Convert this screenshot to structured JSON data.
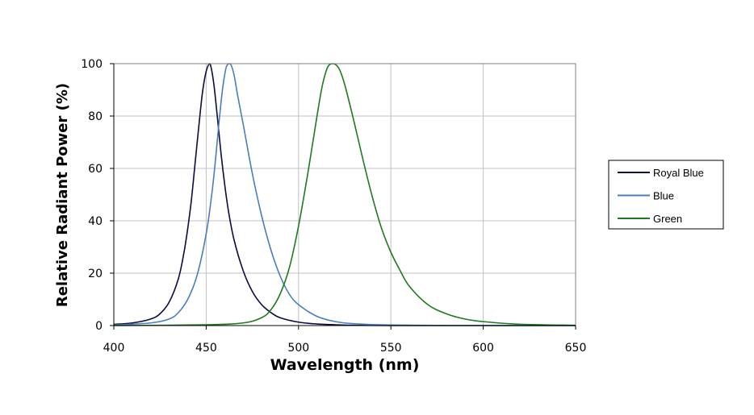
{
  "chart_data": {
    "type": "line",
    "title": "",
    "xlabel": "Wavelength (nm)",
    "ylabel": "Relative Radiant Power (%)",
    "xlim": [
      400,
      650
    ],
    "ylim": [
      0,
      100
    ],
    "xticks": [
      400,
      450,
      500,
      550,
      600,
      650
    ],
    "yticks": [
      0,
      20,
      40,
      60,
      80,
      100
    ],
    "grid": true,
    "legend_position": "right",
    "series": [
      {
        "name": "Royal Blue",
        "color": "#0b0b45",
        "x": [
          400,
          410,
          420,
          425,
          430,
          435,
          438,
          440,
          442,
          444,
          446,
          448,
          450,
          452,
          454,
          456,
          458,
          460,
          462,
          465,
          470,
          475,
          480,
          485,
          490,
          500,
          510,
          520,
          530,
          550,
          600,
          650
        ],
        "y": [
          0.5,
          1,
          2.5,
          4.5,
          9,
          18,
          28,
          37,
          48,
          62,
          76,
          89,
          97,
          100,
          93,
          80,
          66,
          54,
          44,
          33,
          21,
          13,
          8,
          5,
          3,
          1.3,
          0.6,
          0.3,
          0.1,
          0,
          0,
          0
        ]
      },
      {
        "name": "Blue",
        "color": "#4a7ebb",
        "x": [
          400,
          420,
          430,
          435,
          440,
          445,
          450,
          453,
          455,
          457,
          459,
          461,
          463,
          465,
          467,
          470,
          475,
          480,
          485,
          490,
          495,
          500,
          510,
          520,
          530,
          550,
          600,
          650
        ],
        "y": [
          0.2,
          1,
          2.5,
          5,
          10,
          19,
          35,
          50,
          63,
          78,
          91,
          99,
          100,
          96,
          88,
          77,
          58,
          42,
          29,
          19,
          12,
          8,
          3.5,
          1.5,
          0.7,
          0.2,
          0,
          0
        ]
      },
      {
        "name": "Green",
        "color": "#1e7a1e",
        "x": [
          400,
          450,
          470,
          480,
          485,
          490,
          495,
          500,
          505,
          510,
          513,
          516,
          519,
          522,
          525,
          530,
          535,
          540,
          545,
          550,
          555,
          560,
          570,
          580,
          590,
          600,
          620,
          650
        ],
        "y": [
          0,
          0.3,
          1,
          3,
          6,
          12,
          22,
          38,
          58,
          80,
          92,
          99,
          100,
          98,
          92,
          78,
          63,
          49,
          37,
          28,
          21,
          15,
          8,
          4.5,
          2.5,
          1.5,
          0.5,
          0.1
        ]
      }
    ]
  }
}
